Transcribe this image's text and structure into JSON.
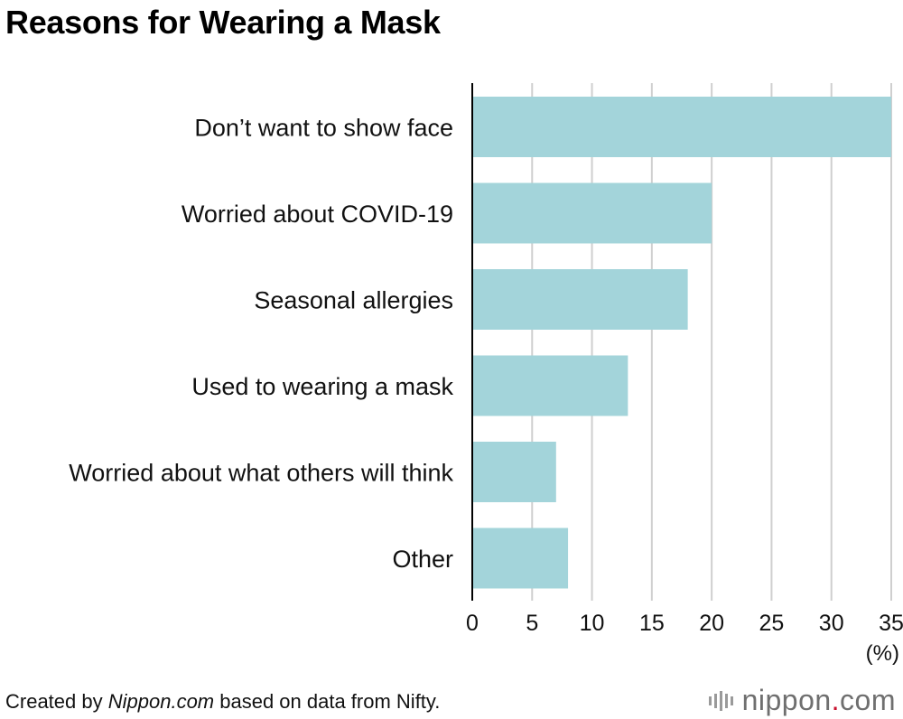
{
  "title": "Reasons for Wearing a Mask",
  "chart_data": {
    "type": "bar",
    "orientation": "horizontal",
    "categories": [
      "Don’t want to show face",
      "Worried about COVID-19",
      "Seasonal allergies",
      "Used to wearing a mask",
      "Worried about what others will think",
      "Other"
    ],
    "values": [
      35,
      20,
      18,
      13,
      7,
      8
    ],
    "xlim": [
      0,
      35
    ],
    "xticks": [
      0,
      5,
      10,
      15,
      20,
      25,
      30,
      35
    ],
    "unit_label": "(%)",
    "grid": true,
    "bar_color": "#a3d4da"
  },
  "footer": {
    "prefix": "Created by ",
    "site": "Nippon.com",
    "suffix": " based on data from Nifty."
  },
  "logo": {
    "icon": "nippon-logo-mark-icon",
    "name": "nippon",
    "dot": ".",
    "tld": "com",
    "accent": "#c8102e"
  }
}
